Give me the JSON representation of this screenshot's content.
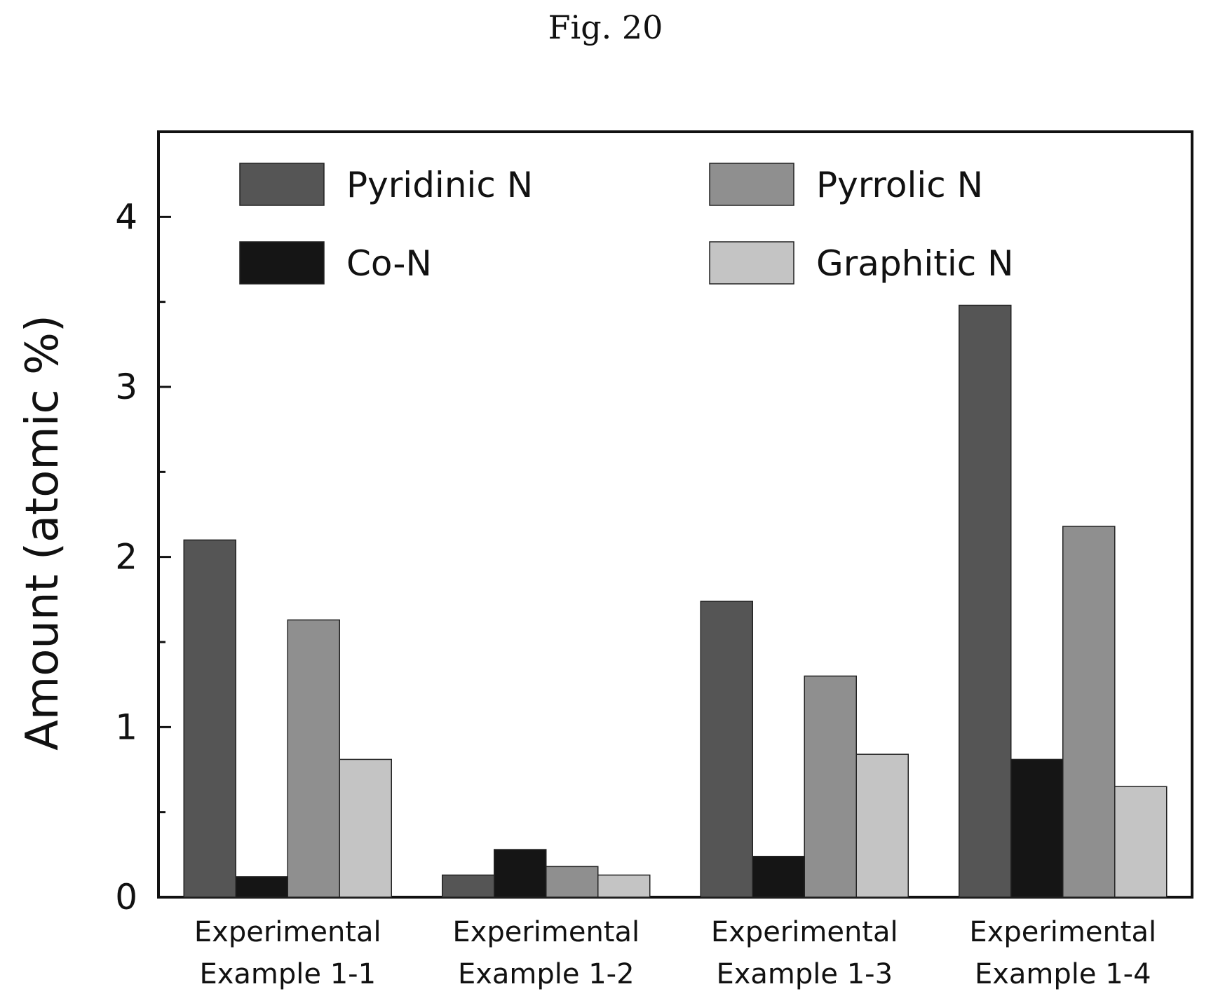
{
  "figure": {
    "title": "Fig. 20"
  },
  "chart_data": {
    "type": "bar",
    "title": "",
    "xlabel": "",
    "ylabel": "Amount (atomic %)",
    "ylim": [
      0,
      4.5
    ],
    "yticks": [
      0,
      1,
      2,
      3,
      4
    ],
    "grid": false,
    "legend_position": "top",
    "categories": [
      [
        "Experimental",
        "Example 1-1"
      ],
      [
        "Experimental",
        "Example 1-2"
      ],
      [
        "Experimental",
        "Example 1-3"
      ],
      [
        "Experimental",
        "Example 1-4"
      ]
    ],
    "series": [
      {
        "name": "Pyridinic N",
        "color": "#555555",
        "values": [
          2.1,
          0.13,
          1.74,
          3.48
        ]
      },
      {
        "name": "Co-N",
        "color": "#151515",
        "values": [
          0.12,
          0.28,
          0.24,
          0.81
        ]
      },
      {
        "name": "Pyrrolic N",
        "color": "#8f8f8f",
        "values": [
          1.63,
          0.18,
          1.3,
          2.18
        ]
      },
      {
        "name": "Graphitic N",
        "color": "#c4c4c4",
        "values": [
          0.81,
          0.13,
          0.84,
          0.65
        ]
      }
    ]
  }
}
